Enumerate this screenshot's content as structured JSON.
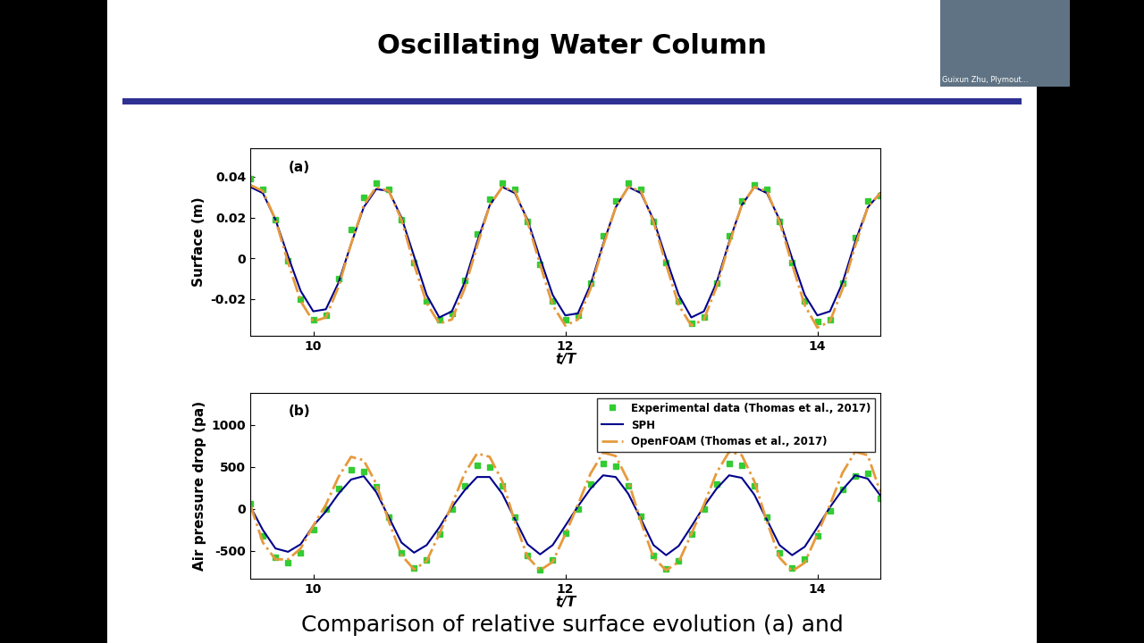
{
  "slide": {
    "title": "Oscillating Water Column",
    "caption": "Comparison of relative surface evolution (a) and",
    "speaker_label": "Guixun Zhu, Plymout..."
  },
  "chart_data": [
    {
      "type": "line",
      "annotations": [
        "(a)"
      ],
      "x_label": "t/T",
      "y_label": "Surface (m)",
      "x": [
        9.5,
        9.6,
        9.7,
        9.8,
        9.9,
        10.0,
        10.1,
        10.2,
        10.3,
        10.4,
        10.5,
        10.6,
        10.7,
        10.8,
        10.9,
        11.0,
        11.1,
        11.2,
        11.3,
        11.4,
        11.5,
        11.6,
        11.7,
        11.8,
        11.9,
        12.0,
        12.1,
        12.2,
        12.3,
        12.4,
        12.5,
        12.6,
        12.7,
        12.8,
        12.9,
        13.0,
        13.1,
        13.2,
        13.3,
        13.4,
        13.5,
        13.6,
        13.7,
        13.8,
        13.9,
        14.0,
        14.1,
        14.2,
        14.3,
        14.4,
        14.5
      ],
      "xlim": [
        9.5,
        14.5
      ],
      "xticks": [
        10,
        12,
        14
      ],
      "ylim": [
        -0.038,
        0.054
      ],
      "yticks": [
        -0.02,
        0,
        0.02,
        0.04
      ],
      "series": [
        {
          "name": "Experimental data (Thomas et al., 2017)",
          "type": "scatter",
          "marker": "s",
          "color": "#33cc33",
          "values": [
            0.039,
            0.034,
            0.019,
            -0.001,
            -0.02,
            -0.03,
            -0.028,
            -0.01,
            0.014,
            0.03,
            0.037,
            0.034,
            0.019,
            -0.002,
            -0.021,
            -0.03,
            -0.027,
            -0.011,
            0.012,
            0.029,
            0.037,
            0.034,
            0.018,
            -0.003,
            -0.021,
            -0.03,
            -0.028,
            -0.012,
            0.011,
            0.028,
            0.037,
            0.034,
            0.018,
            -0.002,
            -0.021,
            -0.032,
            -0.029,
            -0.012,
            0.011,
            0.028,
            0.036,
            0.034,
            0.018,
            -0.002,
            -0.021,
            -0.031,
            -0.03,
            -0.012,
            0.01,
            0.028,
            0.031
          ]
        },
        {
          "name": "SPH",
          "type": "line",
          "line_style": "solid",
          "color": "#00008b",
          "values": [
            0.035,
            0.032,
            0.019,
            0.001,
            -0.016,
            -0.026,
            -0.025,
            -0.012,
            0.007,
            0.025,
            0.034,
            0.033,
            0.02,
            0.001,
            -0.018,
            -0.029,
            -0.026,
            -0.012,
            0.008,
            0.026,
            0.035,
            0.032,
            0.019,
            0.0,
            -0.018,
            -0.028,
            -0.027,
            -0.013,
            0.007,
            0.025,
            0.035,
            0.032,
            0.019,
            0.0,
            -0.018,
            -0.029,
            -0.026,
            -0.012,
            0.008,
            0.026,
            0.035,
            0.032,
            0.019,
            0.0,
            -0.018,
            -0.028,
            -0.026,
            -0.012,
            0.008,
            0.025,
            0.032
          ]
        },
        {
          "name": "OpenFOAM (Thomas et al., 2017)",
          "type": "line",
          "line_style": "dashdot",
          "color": "#e69a3c",
          "values": [
            0.036,
            0.033,
            0.019,
            -0.002,
            -0.021,
            -0.031,
            -0.029,
            -0.014,
            0.007,
            0.026,
            0.035,
            0.033,
            0.019,
            -0.003,
            -0.022,
            -0.032,
            -0.03,
            -0.015,
            0.006,
            0.026,
            0.035,
            0.033,
            0.018,
            -0.003,
            -0.023,
            -0.033,
            -0.03,
            -0.015,
            0.006,
            0.025,
            0.035,
            0.033,
            0.018,
            -0.003,
            -0.023,
            -0.033,
            -0.03,
            -0.014,
            0.007,
            0.026,
            0.035,
            0.033,
            0.018,
            -0.003,
            -0.023,
            -0.034,
            -0.031,
            -0.015,
            0.006,
            0.025,
            0.032
          ]
        }
      ]
    },
    {
      "type": "line",
      "annotations": [
        "(b)"
      ],
      "x_label": "t/T",
      "y_label": "Air pressure drop (pa)",
      "legend": "upper right",
      "x": [
        9.5,
        9.6,
        9.7,
        9.8,
        9.9,
        10.0,
        10.1,
        10.2,
        10.3,
        10.4,
        10.5,
        10.6,
        10.7,
        10.8,
        10.9,
        11.0,
        11.1,
        11.2,
        11.3,
        11.4,
        11.5,
        11.6,
        11.7,
        11.8,
        11.9,
        12.0,
        12.1,
        12.2,
        12.3,
        12.4,
        12.5,
        12.6,
        12.7,
        12.8,
        12.9,
        13.0,
        13.1,
        13.2,
        13.3,
        13.4,
        13.5,
        13.6,
        13.7,
        13.8,
        13.9,
        14.0,
        14.1,
        14.2,
        14.3,
        14.4,
        14.5
      ],
      "xlim": [
        9.5,
        14.5
      ],
      "xticks": [
        10,
        12,
        14
      ],
      "ylim": [
        -830,
        1380
      ],
      "yticks": [
        -500,
        0,
        500,
        1000
      ],
      "series": [
        {
          "name": "Experimental data (Thomas et al., 2017)",
          "type": "scatter",
          "marker": "s",
          "color": "#33cc33",
          "values": [
            60,
            -320,
            -570,
            -640,
            -520,
            -250,
            0,
            240,
            470,
            450,
            260,
            -100,
            -520,
            -700,
            -610,
            -300,
            0,
            280,
            520,
            500,
            280,
            -100,
            -550,
            -720,
            -610,
            -290,
            0,
            300,
            540,
            510,
            280,
            -90,
            -550,
            -710,
            -620,
            -300,
            0,
            300,
            540,
            520,
            280,
            -100,
            -520,
            -700,
            -600,
            -320,
            -20,
            230,
            390,
            420,
            130
          ]
        },
        {
          "name": "SPH",
          "type": "line",
          "line_style": "solid",
          "color": "#00008b",
          "values": [
            30,
            -250,
            -470,
            -510,
            -420,
            -200,
            -30,
            180,
            350,
            390,
            200,
            -100,
            -400,
            -520,
            -430,
            -220,
            20,
            220,
            380,
            380,
            180,
            -120,
            -420,
            -540,
            -430,
            -200,
            30,
            240,
            400,
            380,
            180,
            -120,
            -430,
            -550,
            -440,
            -210,
            30,
            240,
            400,
            370,
            170,
            -130,
            -430,
            -550,
            -450,
            -220,
            20,
            230,
            400,
            360,
            160
          ]
        },
        {
          "name": "OpenFOAM (Thomas et al., 2017)",
          "type": "line",
          "line_style": "dashdot",
          "color": "#e69a3c",
          "values": [
            50,
            -400,
            -600,
            -600,
            -470,
            -200,
            50,
            380,
            620,
            580,
            300,
            -150,
            -550,
            -720,
            -620,
            -300,
            50,
            420,
            660,
            620,
            330,
            -150,
            -570,
            -730,
            -630,
            -300,
            50,
            420,
            670,
            630,
            330,
            -150,
            -580,
            -730,
            -630,
            -300,
            50,
            430,
            680,
            640,
            330,
            -150,
            -580,
            -740,
            -640,
            -300,
            50,
            430,
            680,
            640,
            200
          ]
        }
      ]
    }
  ]
}
